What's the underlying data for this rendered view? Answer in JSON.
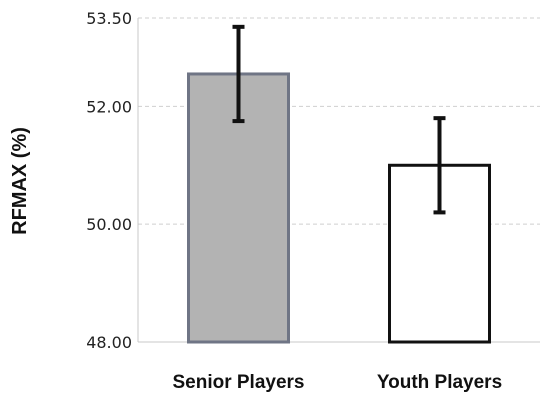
{
  "chart_data": {
    "type": "bar",
    "title": "",
    "xlabel": "",
    "ylabel": "RFMAX (%)",
    "ylim": [
      48.0,
      53.5
    ],
    "yticks": [
      "48.00",
      "50.00",
      "52.00",
      "53.50"
    ],
    "grid": true,
    "categories": [
      "Senior Players",
      "Youth Players"
    ],
    "values": [
      52.55,
      51.0
    ],
    "error": [
      0.8,
      0.8
    ],
    "colors": {
      "bar_fills": [
        "#b3b3b3",
        "#ffffff"
      ],
      "bar_strokes": [
        "#6f7585",
        "#111111"
      ]
    }
  }
}
